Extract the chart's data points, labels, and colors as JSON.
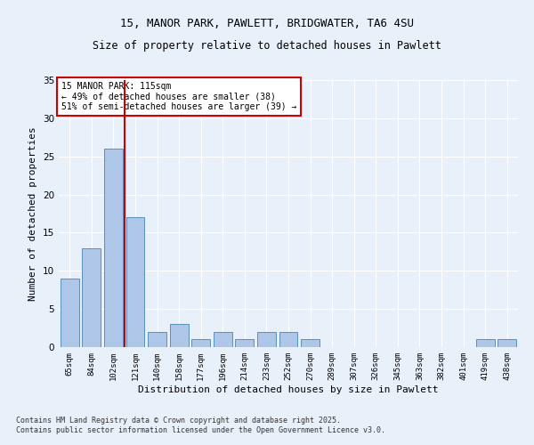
{
  "title_line1": "15, MANOR PARK, PAWLETT, BRIDGWATER, TA6 4SU",
  "title_line2": "Size of property relative to detached houses in Pawlett",
  "xlabel": "Distribution of detached houses by size in Pawlett",
  "ylabel": "Number of detached properties",
  "bar_categories": [
    "65sqm",
    "84sqm",
    "102sqm",
    "121sqm",
    "140sqm",
    "158sqm",
    "177sqm",
    "196sqm",
    "214sqm",
    "233sqm",
    "252sqm",
    "270sqm",
    "289sqm",
    "307sqm",
    "326sqm",
    "345sqm",
    "363sqm",
    "382sqm",
    "401sqm",
    "419sqm",
    "438sqm"
  ],
  "bar_values": [
    9,
    13,
    26,
    17,
    2,
    3,
    1,
    2,
    1,
    2,
    2,
    1,
    0,
    0,
    0,
    0,
    0,
    0,
    0,
    1,
    1
  ],
  "bar_color": "#aec6e8",
  "bar_edge_color": "#5a8fbe",
  "background_color": "#e8f0fa",
  "grid_color": "#ffffff",
  "vline_x": 2.5,
  "vline_color": "#cc0000",
  "annotation_title": "15 MANOR PARK: 115sqm",
  "annotation_line1": "← 49% of detached houses are smaller (38)",
  "annotation_line2": "51% of semi-detached houses are larger (39) →",
  "annotation_box_color": "#ffffff",
  "annotation_box_edge_color": "#cc0000",
  "ylim": [
    0,
    35
  ],
  "yticks": [
    0,
    5,
    10,
    15,
    20,
    25,
    30,
    35
  ],
  "footer_line1": "Contains HM Land Registry data © Crown copyright and database right 2025.",
  "footer_line2": "Contains public sector information licensed under the Open Government Licence v3.0."
}
